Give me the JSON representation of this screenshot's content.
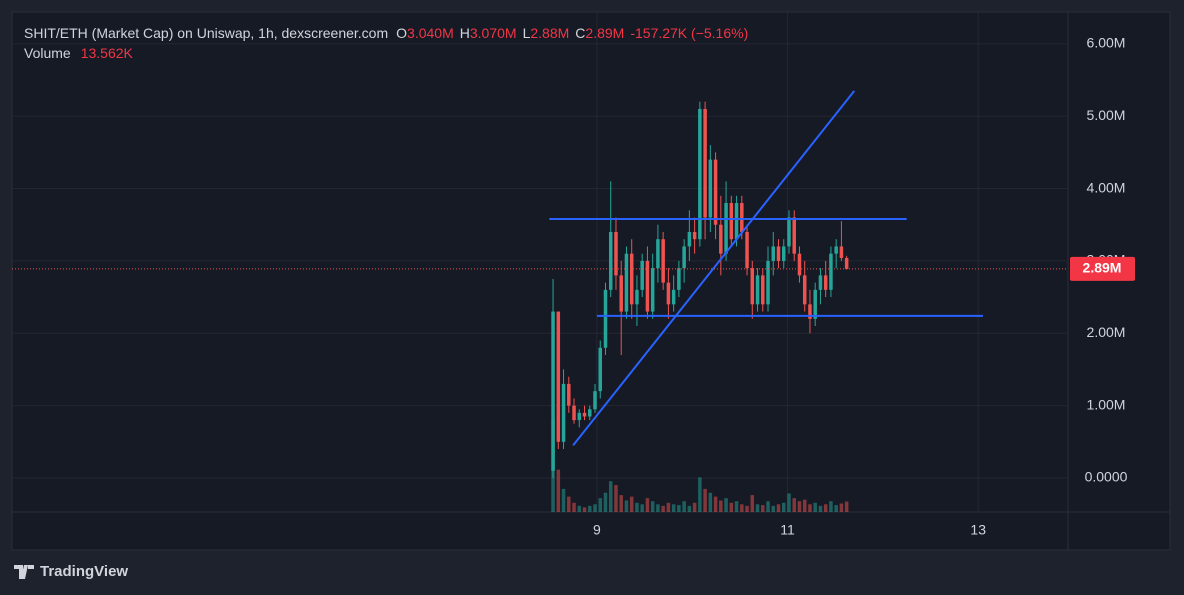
{
  "chart_data": {
    "type": "candlestick",
    "legend": {
      "title": "SHIT/ETH (Market Cap) on Uniswap, 1h, dexscreener.com",
      "ohlc": [
        {
          "key": "O",
          "value": "3.040M"
        },
        {
          "key": "H",
          "value": "3.070M"
        },
        {
          "key": "L",
          "value": "2.88M"
        },
        {
          "key": "C",
          "value": "2.89M"
        }
      ],
      "change": "-157.27K (−5.16%)",
      "volume_label": "Volume",
      "volume_value": "13.562K"
    },
    "candles": {
      "x": [
        8.54,
        8.595,
        8.65,
        8.705,
        8.76,
        8.815,
        8.87,
        8.925,
        8.98,
        9.035,
        9.09,
        9.145,
        9.2,
        9.255,
        9.31,
        9.365,
        9.42,
        9.475,
        9.53,
        9.585,
        9.64,
        9.695,
        9.75,
        9.805,
        9.86,
        9.915,
        9.97,
        10.025,
        10.08,
        10.135,
        10.19,
        10.245,
        10.3,
        10.355,
        10.41,
        10.465,
        10.52,
        10.575,
        10.63,
        10.685,
        10.74,
        10.795,
        10.85,
        10.905,
        10.96,
        11.015,
        11.07,
        11.125,
        11.18,
        11.235,
        11.29,
        11.345,
        11.4,
        11.455,
        11.51,
        11.565,
        11.62
      ],
      "open": [
        0.1,
        2.3,
        0.5,
        1.3,
        1.0,
        0.8,
        0.9,
        0.85,
        0.95,
        1.2,
        1.8,
        2.6,
        3.4,
        2.8,
        2.3,
        3.1,
        2.4,
        2.6,
        3.0,
        2.3,
        2.9,
        3.3,
        2.7,
        2.4,
        2.6,
        2.9,
        3.2,
        3.4,
        3.3,
        5.1,
        3.6,
        4.4,
        3.5,
        3.1,
        3.8,
        3.3,
        3.8,
        3.4,
        2.9,
        2.4,
        2.8,
        2.4,
        3.0,
        3.2,
        3.0,
        3.2,
        3.6,
        3.1,
        2.8,
        2.4,
        2.2,
        2.6,
        2.8,
        2.6,
        3.1,
        3.2,
        3.04
      ],
      "high": [
        2.75,
        2.3,
        1.5,
        1.4,
        1.1,
        0.95,
        1.0,
        1.0,
        1.3,
        1.9,
        2.7,
        4.1,
        3.6,
        3.0,
        3.2,
        3.3,
        2.8,
        3.1,
        3.2,
        3.1,
        3.5,
        3.4,
        2.9,
        2.8,
        3.0,
        3.3,
        3.7,
        3.6,
        5.2,
        5.2,
        4.6,
        4.5,
        3.9,
        4.1,
        3.9,
        3.9,
        3.9,
        3.5,
        3.0,
        2.9,
        2.9,
        3.2,
        3.4,
        3.3,
        3.3,
        3.7,
        3.7,
        3.2,
        3.0,
        2.6,
        2.7,
        2.9,
        3.0,
        3.2,
        3.3,
        3.55,
        3.07
      ],
      "low": [
        0.0,
        0.4,
        0.4,
        0.9,
        0.75,
        0.7,
        0.8,
        0.8,
        0.9,
        1.1,
        1.7,
        2.5,
        2.6,
        1.7,
        2.2,
        2.2,
        2.1,
        2.5,
        2.2,
        2.2,
        2.7,
        2.6,
        2.2,
        2.3,
        2.5,
        2.7,
        3.0,
        3.1,
        3.2,
        3.3,
        3.4,
        3.3,
        2.8,
        3.0,
        3.2,
        3.2,
        3.3,
        2.8,
        2.2,
        2.3,
        2.3,
        2.3,
        2.8,
        2.9,
        2.9,
        3.1,
        3.0,
        2.7,
        2.3,
        2.0,
        2.1,
        2.4,
        2.5,
        2.5,
        2.9,
        3.0,
        2.88
      ],
      "close": [
        2.3,
        0.5,
        1.3,
        1.0,
        0.8,
        0.9,
        0.85,
        0.95,
        1.2,
        1.8,
        2.6,
        3.4,
        2.8,
        2.3,
        3.1,
        2.4,
        2.6,
        3.0,
        2.3,
        2.9,
        3.3,
        2.7,
        2.4,
        2.6,
        2.9,
        3.2,
        3.4,
        3.3,
        5.1,
        3.6,
        4.4,
        3.5,
        3.1,
        3.8,
        3.3,
        3.8,
        3.4,
        2.9,
        2.4,
        2.8,
        2.4,
        3.0,
        3.2,
        3.0,
        3.2,
        3.6,
        3.1,
        2.8,
        2.4,
        2.2,
        2.6,
        2.8,
        2.6,
        3.1,
        3.2,
        3.04,
        2.89
      ],
      "volume": [
        120,
        55,
        30,
        20,
        12,
        8,
        6,
        8,
        10,
        18,
        25,
        40,
        35,
        22,
        15,
        20,
        12,
        10,
        18,
        14,
        10,
        8,
        12,
        10,
        9,
        14,
        8,
        12,
        45,
        30,
        25,
        20,
        15,
        18,
        12,
        14,
        10,
        8,
        22,
        10,
        9,
        14,
        8,
        10,
        12,
        24,
        18,
        14,
        16,
        10,
        12,
        8,
        10,
        14,
        9,
        11,
        13.562
      ]
    },
    "up_color": "#26a69a",
    "down_color": "#ef5350",
    "vlim": [
      0,
      130
    ],
    "xlim": [
      2.864,
      13.942
    ],
    "xticks": [
      9,
      11,
      13
    ],
    "ylim": [
      -0.47,
      6.44
    ],
    "yticks": [
      {
        "value": 0,
        "label": "0.0000"
      },
      {
        "value": 1,
        "label": "1.00M"
      },
      {
        "value": 2,
        "label": "2.00M"
      },
      {
        "value": 3,
        "label": "3.00M"
      },
      {
        "value": 4,
        "label": "4.00M"
      },
      {
        "value": 5,
        "label": "5.00M"
      },
      {
        "value": 6,
        "label": "6.00M"
      }
    ],
    "grid": true,
    "last_price": {
      "value": 2.89,
      "label": "2.89M"
    },
    "drawings": [
      {
        "x": [
          8.5,
          12.25
        ],
        "y": [
          3.58,
          3.58
        ],
        "color": "#2962ff"
      },
      {
        "x": [
          9.0,
          13.05
        ],
        "y": [
          2.24,
          2.24
        ],
        "color": "#2962ff"
      },
      {
        "x": [
          8.75,
          11.7
        ],
        "y": [
          0.45,
          5.35
        ],
        "color": "#2962ff"
      }
    ],
    "brand": "TradingView"
  }
}
